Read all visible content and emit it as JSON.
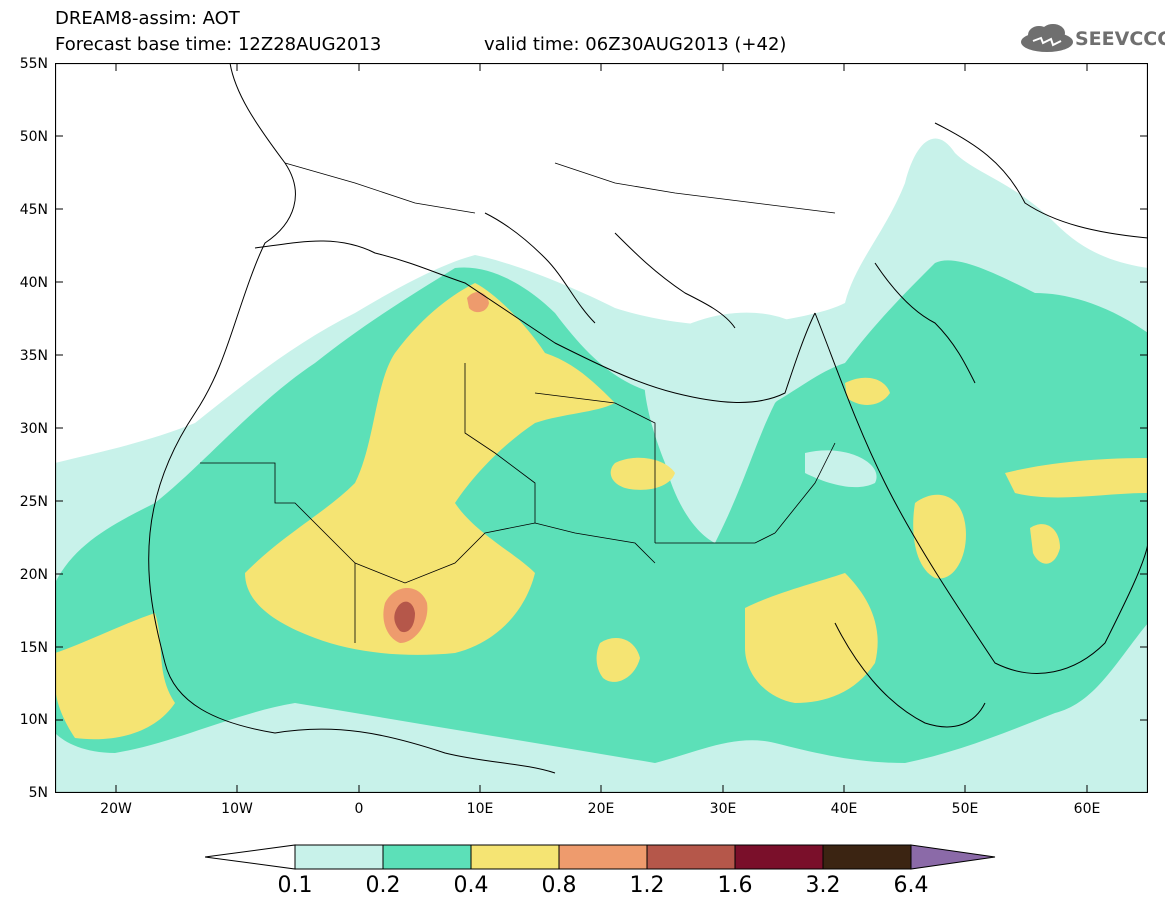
{
  "header": {
    "title_line1": "DREAM8-assim: AOT",
    "base_time": "Forecast base time: 12Z28AUG2013",
    "valid_time": "valid time: 06Z30AUG2013 (+42)"
  },
  "logo": {
    "text": "SEEVCCC",
    "icon": "cloud-icon"
  },
  "map": {
    "lat_labels": [
      "55N",
      "50N",
      "45N",
      "40N",
      "35N",
      "30N",
      "25N",
      "20N",
      "15N",
      "10N",
      "5N"
    ],
    "lon_labels": [
      "20W",
      "10W",
      "0",
      "10E",
      "20E",
      "30E",
      "40E",
      "50E",
      "60E"
    ],
    "extent": {
      "lon": [
        -25,
        65
      ],
      "lat": [
        5,
        55
      ]
    }
  },
  "colorbar": {
    "labels": [
      "0.1",
      "0.2",
      "0.4",
      "0.8",
      "1.2",
      "1.6",
      "3.2",
      "6.4"
    ],
    "colors": [
      "#c8f2ea",
      "#5ce0b8",
      "#f5e473",
      "#ee9b6d",
      "#b5574a",
      "#7a0f2a",
      "#3b2412",
      "#8b6aa8"
    ]
  }
}
